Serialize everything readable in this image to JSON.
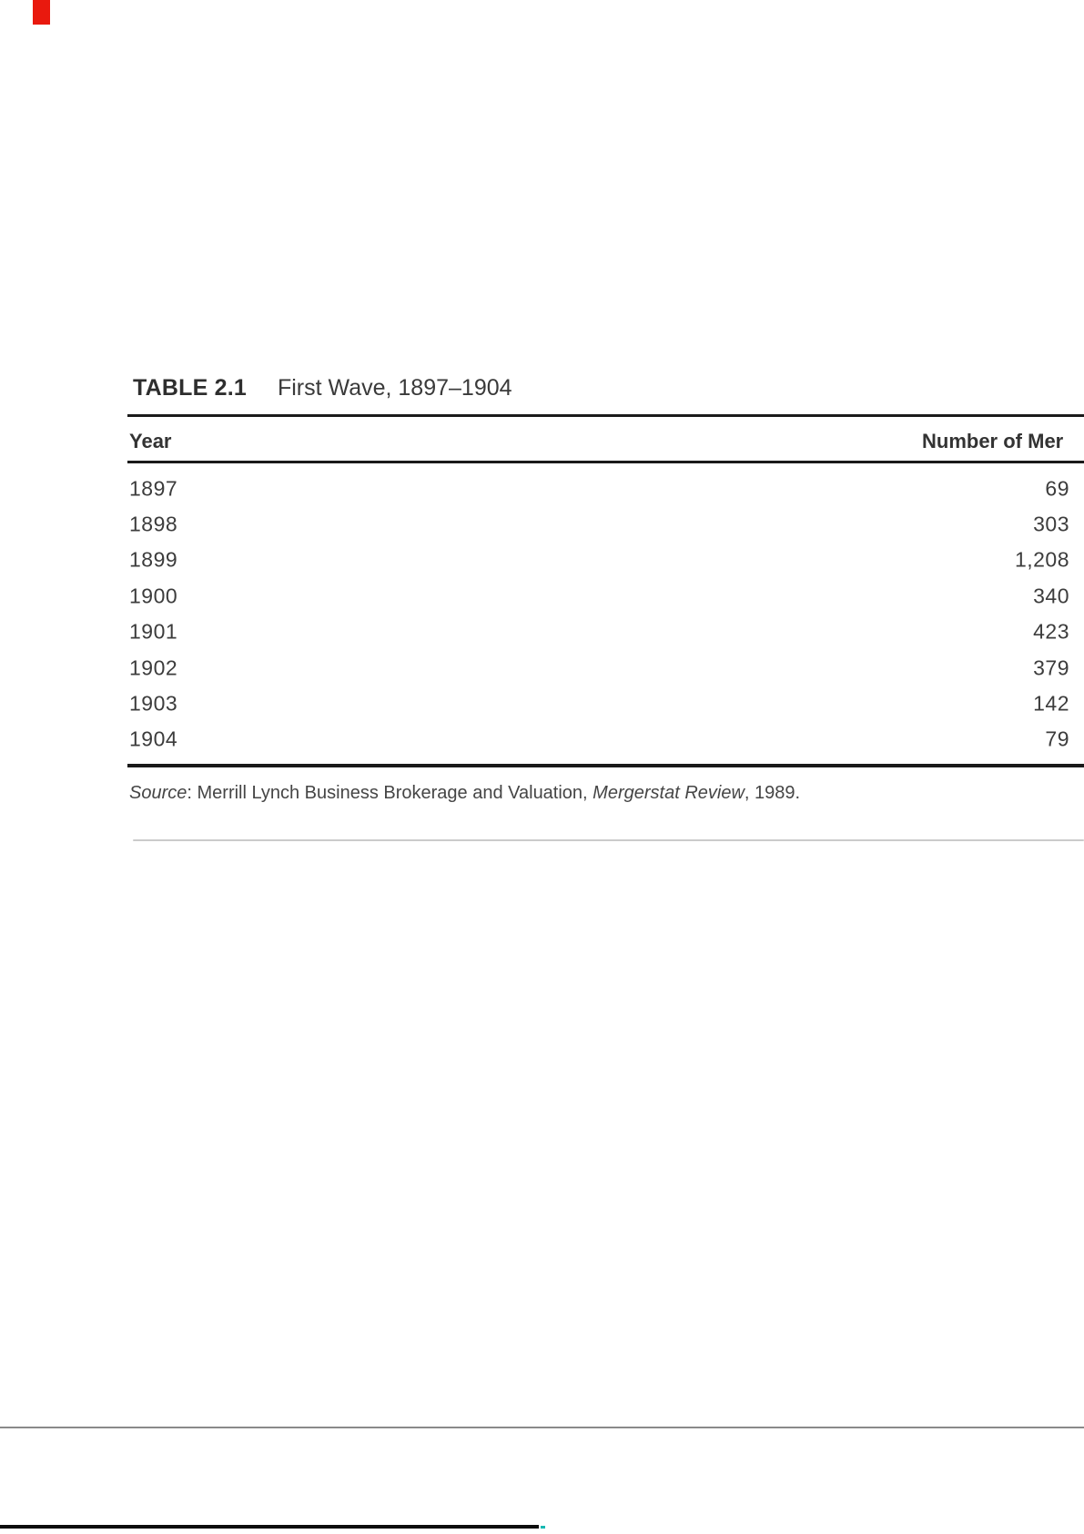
{
  "table": {
    "label": "TABLE 2.1",
    "title": "First Wave, 1897–1904",
    "columns": {
      "year": "Year",
      "value": "Number of Mer"
    },
    "rows": [
      {
        "year": "1897",
        "value": "69"
      },
      {
        "year": "1898",
        "value": "303"
      },
      {
        "year": "1899",
        "value": "1,208"
      },
      {
        "year": "1900",
        "value": "340"
      },
      {
        "year": "1901",
        "value": "423"
      },
      {
        "year": "1902",
        "value": "379"
      },
      {
        "year": "1903",
        "value": "142"
      },
      {
        "year": "1904",
        "value": "79"
      }
    ]
  },
  "source": {
    "label": "Source",
    "separator": ": ",
    "text": "Merrill Lynch Business Brokerage and Valuation, ",
    "publication": "Mergerstat Review",
    "suffix": ", 1989."
  },
  "colors": {
    "text": "#3c3c3c",
    "rule": "#1a1a1a",
    "faint_rule": "#cbcbcb",
    "gray_rule": "#8a8a8a",
    "bottom_rule": "#0d0d0d",
    "red_mark": "#e9190e",
    "teal_dot": "#16b8b2"
  }
}
